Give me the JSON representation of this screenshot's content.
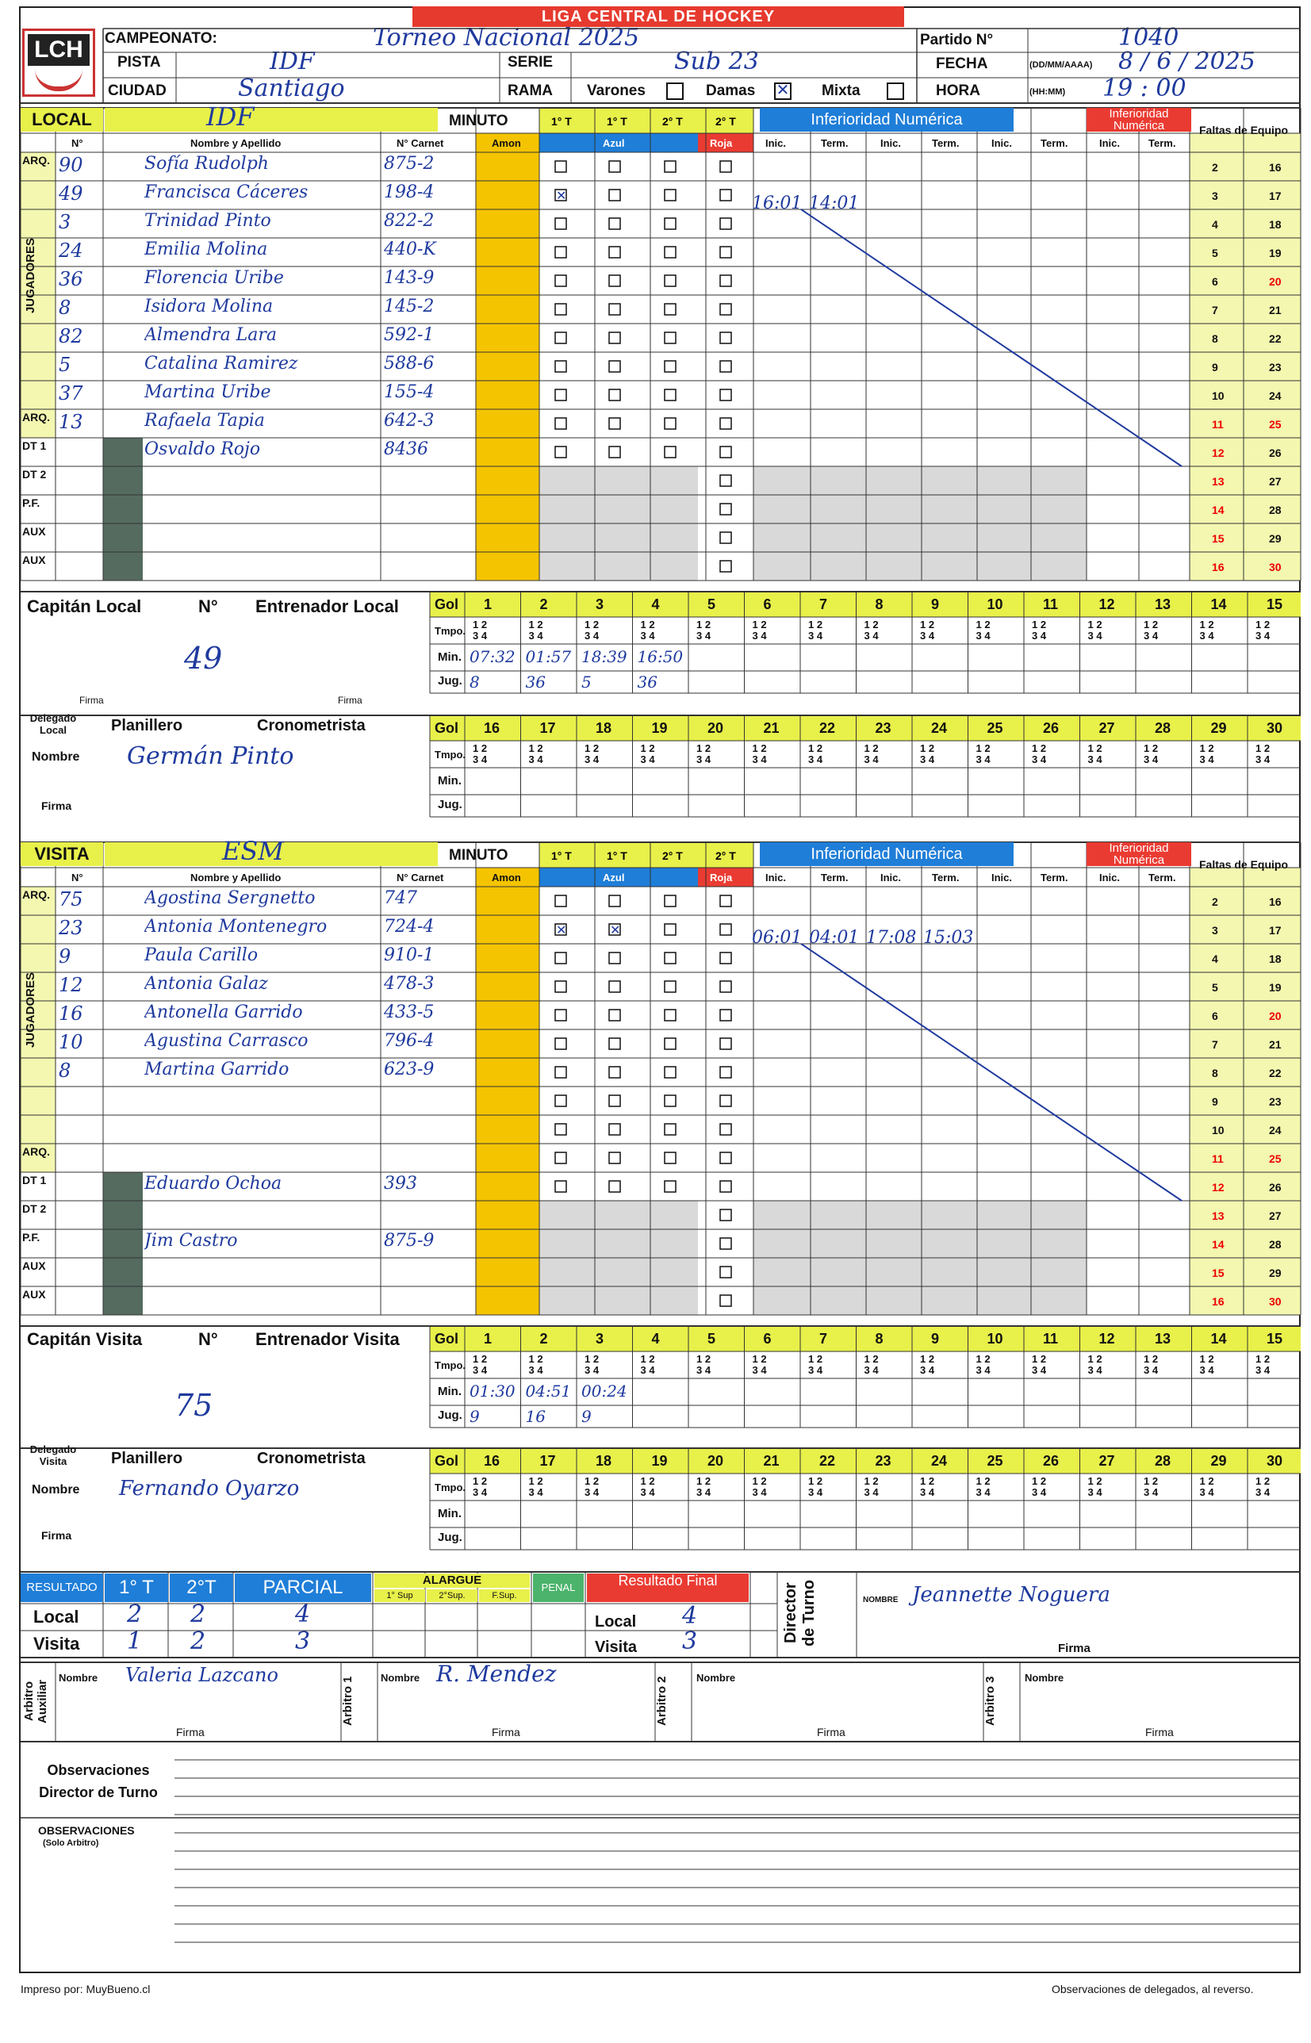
{
  "header": {
    "banner": "LIGA CENTRAL DE HOCKEY",
    "logo": "LCH",
    "campeonato_label": "CAMPEONATO:",
    "campeonato_value": "Torneo Nacional 2025",
    "pista_label": "PISTA",
    "pista_value": "IDF",
    "serie_label": "SERIE",
    "serie_value": "Sub 23",
    "ciudad_label": "CIUDAD",
    "ciudad_value": "Santiago",
    "rama_label": "RAMA",
    "varones_label": "Varones",
    "damas_label": "Damas",
    "mixta_label": "Mixta",
    "partido_label": "Partido N°",
    "partido_value": "1040",
    "fecha_label": "FECHA",
    "fecha_format": "(DD/MM/AAAA)",
    "fecha_value": "8 / 6 / 2025",
    "hora_label": "HORA",
    "hora_format": "(HH:MM)",
    "hora_value": "19 : 00"
  },
  "columns": {
    "num": "N°",
    "nombre": "Nombre y Apellido",
    "carnet": "N° Carnet",
    "minuto": "MINUTO",
    "amon": "Amon",
    "azul": "Azul",
    "roja": "Roja",
    "t1": "1° T",
    "t2": "2° T",
    "inferioridad": "Inferioridad Numérica",
    "inic": "Inic.",
    "term": "Term.",
    "faltas": "Faltas de Equipo"
  },
  "local": {
    "label": "LOCAL",
    "team": "IDF",
    "rows": [
      {
        "role": "ARQ.",
        "num": "90",
        "name": "Sofía Rudolph",
        "carnet": "875-2"
      },
      {
        "role": "",
        "num": "49",
        "name": "Francisca Cáceres",
        "carnet": "198-4"
      },
      {
        "role": "",
        "num": "3",
        "name": "Trinidad Pinto",
        "carnet": "822-2"
      },
      {
        "role": "",
        "num": "24",
        "name": "Emilia Molina",
        "carnet": "440-K"
      },
      {
        "role": "",
        "num": "36",
        "name": "Florencia Uribe",
        "carnet": "143-9"
      },
      {
        "role": "",
        "num": "8",
        "name": "Isidora Molina",
        "carnet": "145-2"
      },
      {
        "role": "",
        "num": "82",
        "name": "Almendra Lara",
        "carnet": "592-1"
      },
      {
        "role": "",
        "num": "5",
        "name": "Catalina Ramirez",
        "carnet": "588-6"
      },
      {
        "role": "",
        "num": "37",
        "name": "Martina Uribe",
        "carnet": "155-4"
      },
      {
        "role": "ARQ.",
        "num": "13",
        "name": "Rafaela Tapia",
        "carnet": "642-3"
      },
      {
        "role": "DT 1",
        "num": "",
        "name": "Osvaldo Rojo",
        "carnet": "8436"
      },
      {
        "role": "DT 2",
        "num": "",
        "name": "",
        "carnet": ""
      },
      {
        "role": "P.F.",
        "num": "",
        "name": "",
        "carnet": ""
      },
      {
        "role": "AUX",
        "num": "",
        "name": "",
        "carnet": ""
      },
      {
        "role": "AUX",
        "num": "",
        "name": "",
        "carnet": ""
      }
    ],
    "jugadores_label": "JUGADORES",
    "inf_times": [
      "16:01",
      "14:01"
    ],
    "capitan_label": "Capitán Local",
    "num_label": "N°",
    "capitan_num": "49",
    "entrenador_label": "Entrenador Local",
    "firma": "Firma",
    "delegado_label": "Delegado Local",
    "planillero_label": "Planillero",
    "cronometrista_label": "Cronometrista",
    "nombre_label": "Nombre",
    "delegado_nombre": "Germán Pinto",
    "goals_min": [
      "07:32",
      "01:57",
      "18:39",
      "16:50"
    ],
    "goals_jug": [
      "8",
      "36",
      "5",
      "36"
    ]
  },
  "visita": {
    "label": "VISITA",
    "team": "ESM",
    "rows": [
      {
        "role": "ARQ.",
        "num": "75",
        "name": "Agostina Sergnetto",
        "carnet": "747"
      },
      {
        "role": "",
        "num": "23",
        "name": "Antonia Montenegro",
        "carnet": "724-4"
      },
      {
        "role": "",
        "num": "9",
        "name": "Paula Carillo",
        "carnet": "910-1"
      },
      {
        "role": "",
        "num": "12",
        "name": "Antonia Galaz",
        "carnet": "478-3"
      },
      {
        "role": "",
        "num": "16",
        "name": "Antonella Garrido",
        "carnet": "433-5"
      },
      {
        "role": "",
        "num": "10",
        "name": "Agustina Carrasco",
        "carnet": "796-4"
      },
      {
        "role": "",
        "num": "8",
        "name": "Martina Garrido",
        "carnet": "623-9"
      },
      {
        "role": "",
        "num": "",
        "name": "",
        "carnet": ""
      },
      {
        "role": "",
        "num": "",
        "name": "",
        "carnet": ""
      },
      {
        "role": "ARQ.",
        "num": "",
        "name": "",
        "carnet": ""
      },
      {
        "role": "DT 1",
        "num": "",
        "name": "Eduardo Ochoa",
        "carnet": "393"
      },
      {
        "role": "DT 2",
        "num": "",
        "name": "",
        "carnet": ""
      },
      {
        "role": "P.F.",
        "num": "",
        "name": "Jim Castro",
        "carnet": "875-9"
      },
      {
        "role": "AUX",
        "num": "",
        "name": "",
        "carnet": ""
      },
      {
        "role": "AUX",
        "num": "",
        "name": "",
        "carnet": ""
      }
    ],
    "inf_times": [
      "06:01",
      "04:01",
      "17:08",
      "15:03"
    ],
    "capitan_label": "Capitán Visita",
    "capitan_num": "75",
    "entrenador_label": "Entrenador Visita",
    "delegado_label": "Delegado Visita",
    "delegado_nombre": "Fernando Oyarzo",
    "goals_min": [
      "01:30",
      "04:51",
      "00:24"
    ],
    "goals_jug": [
      "9",
      "16",
      "9"
    ]
  },
  "gol_table": {
    "gol": "Gol",
    "tmpo": "Tmpo.",
    "min": "Min.",
    "jug": "Jug.",
    "q12": "1  2",
    "q34": "3  4"
  },
  "resultado": {
    "label": "RESULTADO",
    "t1": "1° T",
    "t2": "2°T",
    "parcial": "PARCIAL",
    "alargue": "ALARGUE",
    "sup1": "1° Sup",
    "sup2": "2°Sup.",
    "fsup": "F.Sup.",
    "penal": "PENAL",
    "final": "Resultado Final",
    "local": "Local",
    "visita": "Visita",
    "local_t1": "2",
    "local_t2": "2",
    "local_parcial": "4",
    "visita_t1": "1",
    "visita_t2": "2",
    "visita_parcial": "3",
    "local_final": "4",
    "visita_final": "3",
    "director_label": "Director de Turno",
    "nombre_label": "NOMBRE",
    "director_nombre": "Jeannette Noguera",
    "firma": "Firma"
  },
  "arbitros": {
    "auxiliar_label": "Arbitro Auxiliar",
    "a1_label": "Arbitro 1",
    "a2_label": "Arbitro 2",
    "a3_label": "Arbitro 3",
    "nombre": "Nombre",
    "firma": "Firma",
    "auxiliar_nombre": "Valeria Lazcano",
    "a1_nombre": "R. Mendez"
  },
  "observaciones": {
    "director": "Observaciones Director de Turno",
    "arbitro": "OBSERVACIONES",
    "solo": "(Solo Arbitro)"
  },
  "footer": {
    "left": "Impreso por: MuyBueno.cl",
    "right": "Observaciones de delegados, al reverso."
  },
  "colors": {
    "red": "#e63a2e",
    "blue": "#1f7ed8",
    "yellow": "#e8f04a",
    "amon": "#f5c400",
    "ink": "#1f3a9e"
  }
}
